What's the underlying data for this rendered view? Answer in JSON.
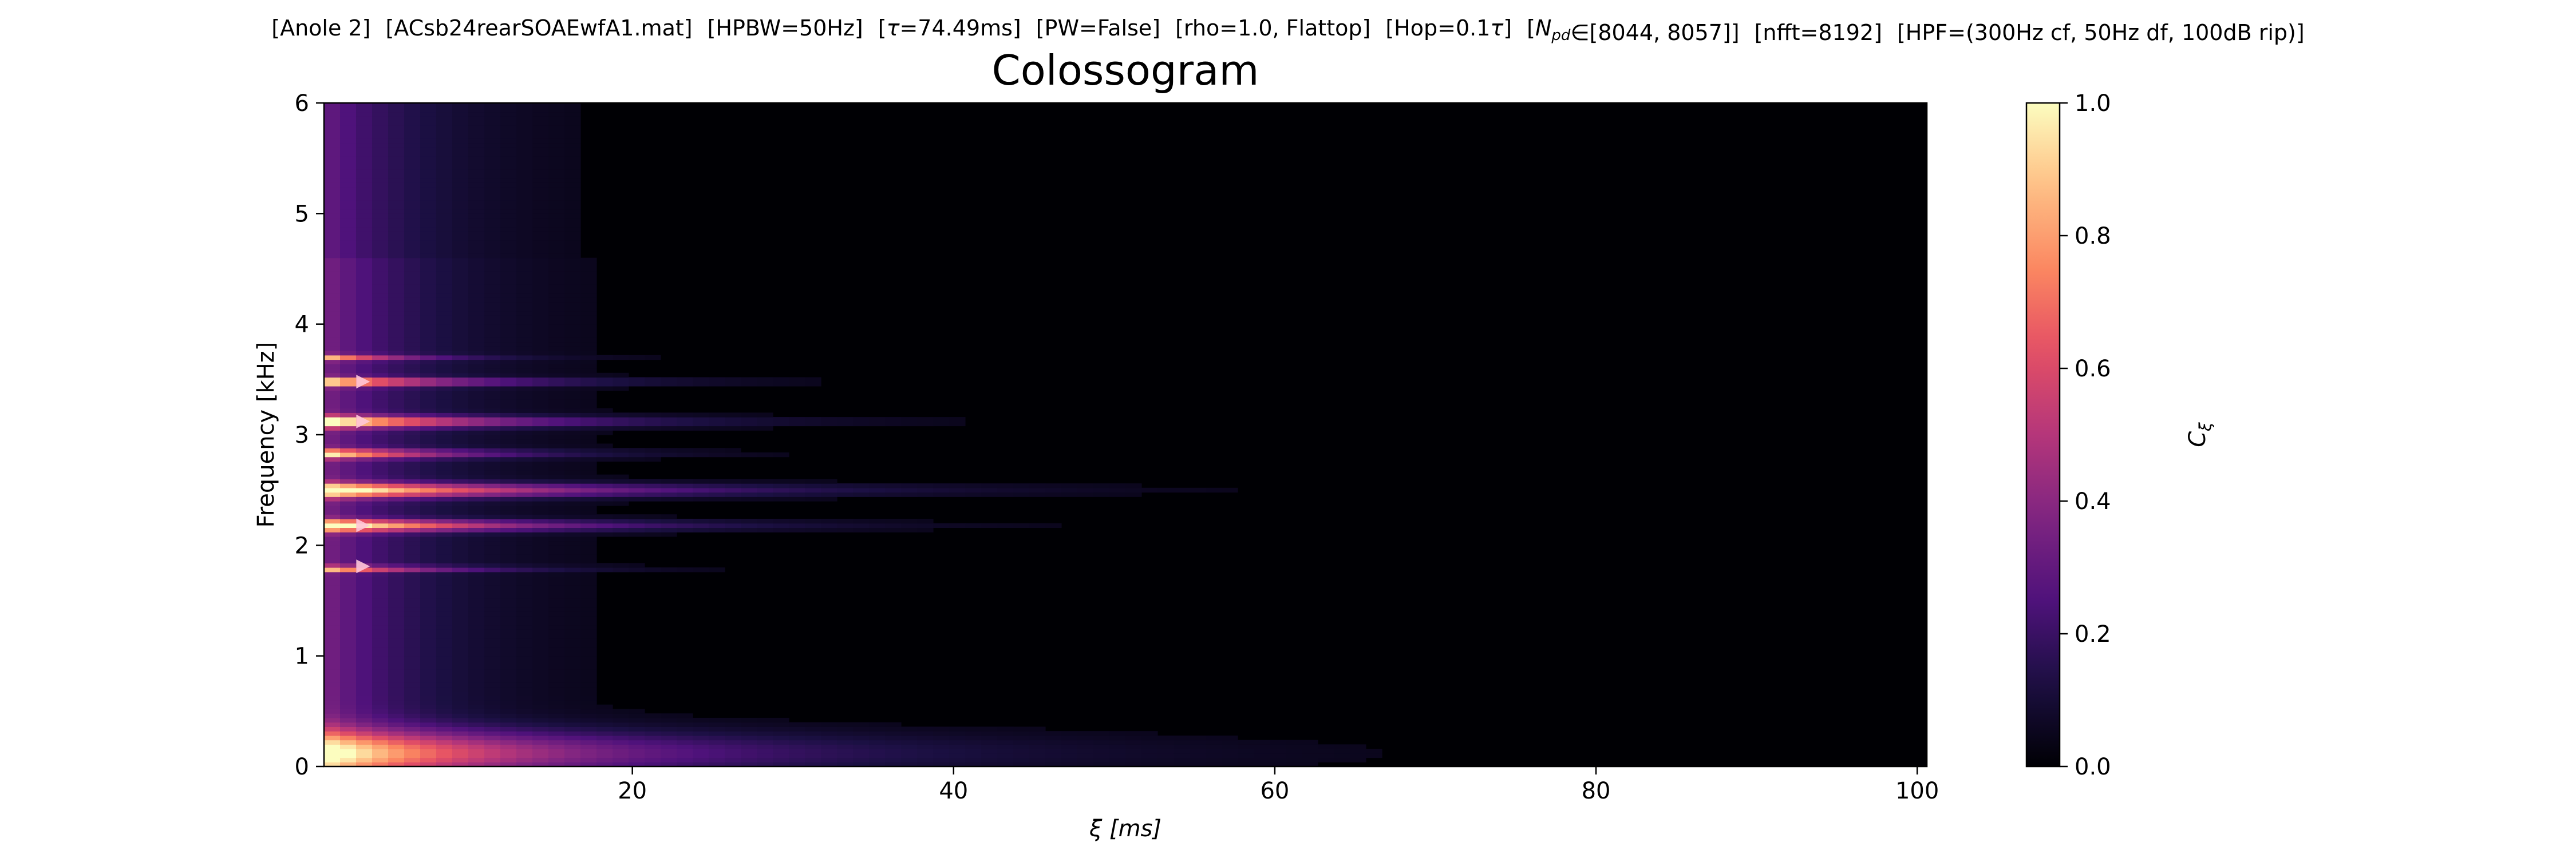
{
  "suptitle": {
    "parts": [
      {
        "pre": "[Anole 2]"
      },
      {
        "pre": "[ACsb24rearSOAEwfA1.mat]"
      },
      {
        "pre": "[HPBW=50Hz]"
      },
      {
        "pre": "[",
        "sym": "τ",
        "post": "=74.49ms]"
      },
      {
        "pre": "[PW=False]"
      },
      {
        "pre": "[rho=1.0, Flattop]"
      },
      {
        "pre": "[Hop=0.1",
        "sym": "τ",
        "post": "]"
      },
      {
        "pre": "[",
        "sym": "N",
        "sub": "pd",
        "post": "∈[8044, 8057]]"
      },
      {
        "pre": "[nfft=8192]"
      },
      {
        "pre": "[HPF=(300Hz cf, 50Hz df, 100dB rip)]"
      }
    ]
  },
  "chart_data": {
    "type": "heatmap",
    "title": "Colossogram",
    "xlabel": "ξ [ms]",
    "ylabel": "Frequency [kHz]",
    "xlim": [
      0.8,
      100.6
    ],
    "ylim": [
      0,
      6
    ],
    "xticks": [
      20,
      40,
      60,
      80,
      100
    ],
    "yticks": [
      0,
      1,
      2,
      3,
      4,
      5,
      6
    ],
    "grid": false,
    "colormap": "magma",
    "colorbar": {
      "label": "C",
      "label_sub": "ξ",
      "range": [
        0,
        1
      ],
      "ticks": [
        "0.0",
        "0.2",
        "0.4",
        "0.6",
        "0.8",
        "1.0"
      ]
    },
    "peak_markers_khz": [
      3.48,
      3.12,
      2.18,
      1.81
    ],
    "peak_marker_xi_ms": 3.2,
    "peak_marker_color": "#ffc6d8",
    "bands": [
      {
        "f_khz": 0.12,
        "width_khz": 0.2,
        "c0": 0.78,
        "decay_ms": 18
      },
      {
        "f_khz": 1.79,
        "width_khz": 0.025,
        "c0": 0.65,
        "decay_ms": 7
      },
      {
        "f_khz": 2.18,
        "width_khz": 0.05,
        "c0": 0.88,
        "decay_ms": 12
      },
      {
        "f_khz": 2.5,
        "width_khz": 0.06,
        "c0": 0.9,
        "decay_ms": 15
      },
      {
        "f_khz": 2.83,
        "width_khz": 0.04,
        "c0": 0.7,
        "decay_ms": 8
      },
      {
        "f_khz": 3.12,
        "width_khz": 0.05,
        "c0": 0.85,
        "decay_ms": 11
      },
      {
        "f_khz": 3.48,
        "width_khz": 0.035,
        "c0": 0.8,
        "decay_ms": 9
      },
      {
        "f_khz": 3.7,
        "width_khz": 0.025,
        "c0": 0.55,
        "decay_ms": 5
      }
    ],
    "background": {
      "c0": 0.32,
      "decay_ms": 6,
      "floor": 0.03
    }
  }
}
